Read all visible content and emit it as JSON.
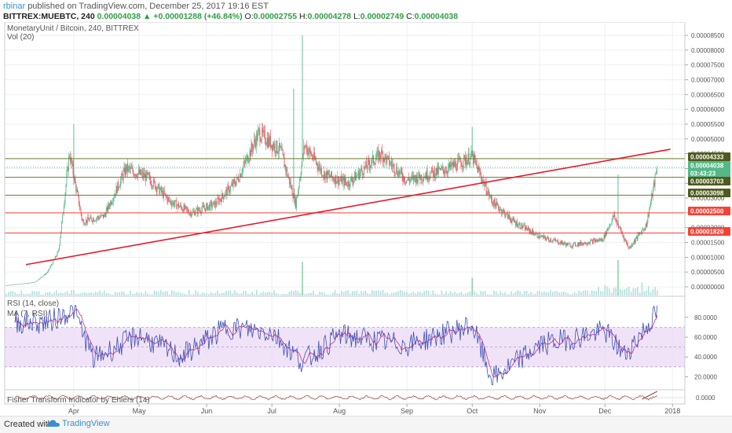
{
  "header": {
    "user": "rbinar",
    "published_text": "published on TradingView.com, December 25, 2017 19:16 EST",
    "symbol": "BITTREX:MUEBTC, 240",
    "last": "0.00004038",
    "change_arrow": "▲",
    "change": "+0.00001288 (+46.84%)",
    "o_label": "O:",
    "o": "0.00002755",
    "h_label": "H:",
    "h": "0.00004278",
    "l_label": "L:",
    "l": "0.00002749",
    "c_label": "C:",
    "c": "0.00004038"
  },
  "legend": {
    "main": "MonetaryUnit / Bitcoin, 240, BITTREX",
    "vol": "Vol (20)",
    "rsi": "RSI (14, close)",
    "ma": "MA (7, RSI)",
    "fisher": "Fisher Transform Indicator by Ehlers (14)"
  },
  "footer": {
    "created": "Created with",
    "brand": "TradingView"
  },
  "colors": {
    "up": "#53b987",
    "down": "#eb4d5c",
    "trend": "#e8192c",
    "hline_red": "#f44336",
    "hline_olive": "#6b7a2a",
    "rsi": "#3f51b5",
    "ma": "#c62a88",
    "fisher": "#8b4a3a",
    "rsi_band": "#e9d7f5",
    "volume": "#9fd6d7"
  },
  "chart_data": {
    "type": "candlestick",
    "title": "MonetaryUnit / Bitcoin, 240, BITTREX",
    "x_ticks": [
      "Apr",
      "May",
      "Jun",
      "Jul",
      "Aug",
      "Sep",
      "Oct",
      "Nov",
      "Dec",
      "2018"
    ],
    "y_ticks": [
      "0.00008500",
      "0.00008000",
      "0.00007500",
      "0.00007000",
      "0.00006500",
      "0.00006000",
      "0.00005500",
      "0.00005000",
      "0.00004500",
      "0.00004000",
      "0.00003500",
      "0.00003000",
      "0.00002500",
      "0.00002000",
      "0.00001500",
      "0.00001000",
      "0.00000500",
      "0.00000000"
    ],
    "ylim": [
      0,
      8.8e-05
    ],
    "series_close_approx": [
      {
        "date": "Mar 1",
        "close": 5e-07
      },
      {
        "date": "Mar 14",
        "close": 1.5e-06
      },
      {
        "date": "Mar 20",
        "close": 5e-06
      },
      {
        "date": "Mar 25",
        "close": 1.2e-05
      },
      {
        "date": "Mar 30",
        "close": 4.5e-05
      },
      {
        "date": "Apr 5",
        "close": 2.2e-05
      },
      {
        "date": "Apr 15",
        "close": 2.4e-05
      },
      {
        "date": "Apr 25",
        "close": 4e-05
      },
      {
        "date": "May 5",
        "close": 3.7e-05
      },
      {
        "date": "May 15",
        "close": 2.9e-05
      },
      {
        "date": "May 25",
        "close": 2.5e-05
      },
      {
        "date": "Jun 5",
        "close": 2.8e-05
      },
      {
        "date": "Jun 15",
        "close": 3.6e-05
      },
      {
        "date": "Jun 25",
        "close": 5.2e-05
      },
      {
        "date": "Jul 5",
        "close": 4.6e-05
      },
      {
        "date": "Jul 12",
        "close": 2.8e-05
      },
      {
        "date": "Jul 16",
        "close": 4.8e-05
      },
      {
        "date": "Jul 25",
        "close": 3.8e-05
      },
      {
        "date": "Aug 5",
        "close": 3.5e-05
      },
      {
        "date": "Aug 20",
        "close": 4.5e-05
      },
      {
        "date": "Sep 1",
        "close": 3.6e-05
      },
      {
        "date": "Sep 20",
        "close": 4e-05
      },
      {
        "date": "Oct 1",
        "close": 4.4e-05
      },
      {
        "date": "Oct 10",
        "close": 2.9e-05
      },
      {
        "date": "Oct 20",
        "close": 2.2e-05
      },
      {
        "date": "Nov 1",
        "close": 1.7e-05
      },
      {
        "date": "Nov 15",
        "close": 1.4e-05
      },
      {
        "date": "Nov 30",
        "close": 1.6e-05
      },
      {
        "date": "Dec 5",
        "close": 2.4e-05
      },
      {
        "date": "Dec 12",
        "close": 1.3e-05
      },
      {
        "date": "Dec 20",
        "close": 2.1e-05
      },
      {
        "date": "Dec 25",
        "close": 4.038e-05
      }
    ],
    "spikes_high": [
      {
        "date": "Apr 1",
        "high": 5.5e-05
      },
      {
        "date": "Jul 11",
        "high": 6.7e-05
      },
      {
        "date": "Jul 15",
        "high": 8.5e-05
      },
      {
        "date": "Oct 1",
        "high": 5.4e-05
      },
      {
        "date": "Dec 7",
        "high": 3.8e-05
      }
    ],
    "price_labels": [
      {
        "value": "0.00004333",
        "style": "olive"
      },
      {
        "value": "0.00004038",
        "style": "green"
      },
      {
        "value": "03:43:23",
        "style": "green"
      },
      {
        "value": "0.00003703",
        "style": "olive"
      },
      {
        "value": "0.00003098",
        "style": "olive"
      },
      {
        "value": "0.00002500",
        "style": "red"
      },
      {
        "value": "0.00001820",
        "style": "red"
      }
    ],
    "horizontal_levels": [
      4.333e-05,
      3.703e-05,
      3.098e-05,
      2.5e-05,
      1.82e-05
    ],
    "trendline": {
      "start": {
        "date": "Mar 10",
        "value": 7.5e-06
      },
      "end": {
        "date": "Dec 31",
        "value": 4.65e-05
      }
    },
    "volume_spikes": [
      {
        "date": "Jul 15",
        "volume": 0.95
      },
      {
        "date": "Oct 1",
        "volume": 0.5
      },
      {
        "date": "Dec 7",
        "volume": 1.0
      }
    ],
    "rsi": {
      "name": "RSI (14, close)",
      "ma_name": "MA (7, RSI)",
      "ylim": [
        10,
        95
      ],
      "y_ticks": [
        "80.0000",
        "60.0000",
        "40.0000",
        "20.0000"
      ],
      "band": [
        30,
        70
      ],
      "values_approx": [
        {
          "date": "Mar 20",
          "rsi": 75
        },
        {
          "date": "Apr 1",
          "rsi": 88
        },
        {
          "date": "Apr 10",
          "rsi": 38
        },
        {
          "date": "May 1",
          "rsi": 62
        },
        {
          "date": "May 20",
          "rsi": 40
        },
        {
          "date": "Jun 10",
          "rsi": 70
        },
        {
          "date": "Jul 1",
          "rsi": 65
        },
        {
          "date": "Jul 15",
          "rsi": 35
        },
        {
          "date": "Aug 1",
          "rsi": 62
        },
        {
          "date": "Sep 1",
          "rsi": 52
        },
        {
          "date": "Oct 1",
          "rsi": 72
        },
        {
          "date": "Oct 10",
          "rsi": 17
        },
        {
          "date": "Nov 1",
          "rsi": 52
        },
        {
          "date": "Dec 1",
          "rsi": 66
        },
        {
          "date": "Dec 10",
          "rsi": 42
        },
        {
          "date": "Dec 25",
          "rsi": 85
        }
      ]
    },
    "fisher": {
      "name": "Fisher Transform Indicator by Ehlers (14)",
      "y_ticks": [
        "0.0000"
      ]
    }
  }
}
